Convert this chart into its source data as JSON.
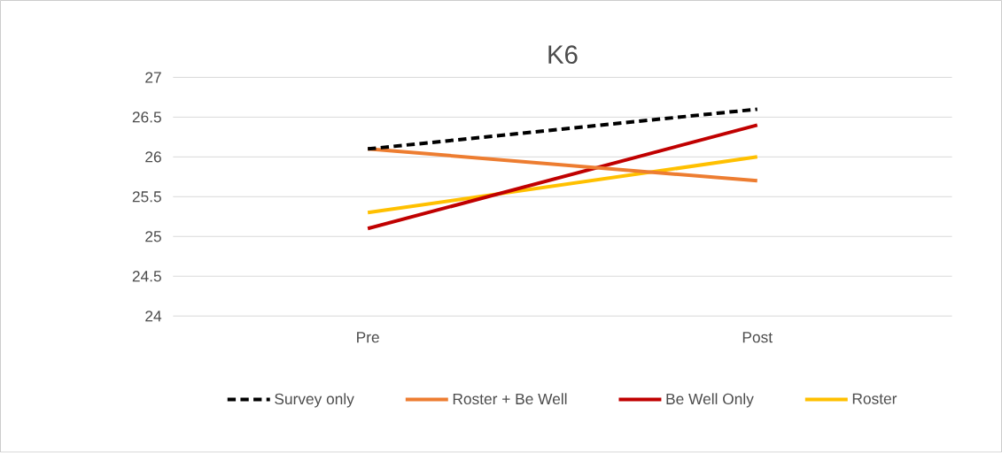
{
  "chart_data": {
    "type": "line",
    "title": "K6",
    "categories": [
      "Pre",
      "Post"
    ],
    "series": [
      {
        "name": "Survey only",
        "color": "#000000",
        "values": [
          26.1,
          26.6
        ],
        "line_style": "dashed"
      },
      {
        "name": "Roster + Be Well",
        "color": "#ed7d31",
        "values": [
          26.1,
          25.7
        ]
      },
      {
        "name": "Be Well Only",
        "color": "#c00000",
        "values": [
          25.1,
          26.4
        ]
      },
      {
        "name": "Roster",
        "color": "#ffc000",
        "values": [
          25.3,
          26.0
        ]
      }
    ],
    "ylim": [
      24,
      27
    ],
    "yticks": [
      24,
      24.5,
      25,
      25.5,
      26,
      26.5,
      27
    ],
    "grid": "y",
    "legend": "bottom",
    "marker": "none",
    "line_style": "solid"
  }
}
